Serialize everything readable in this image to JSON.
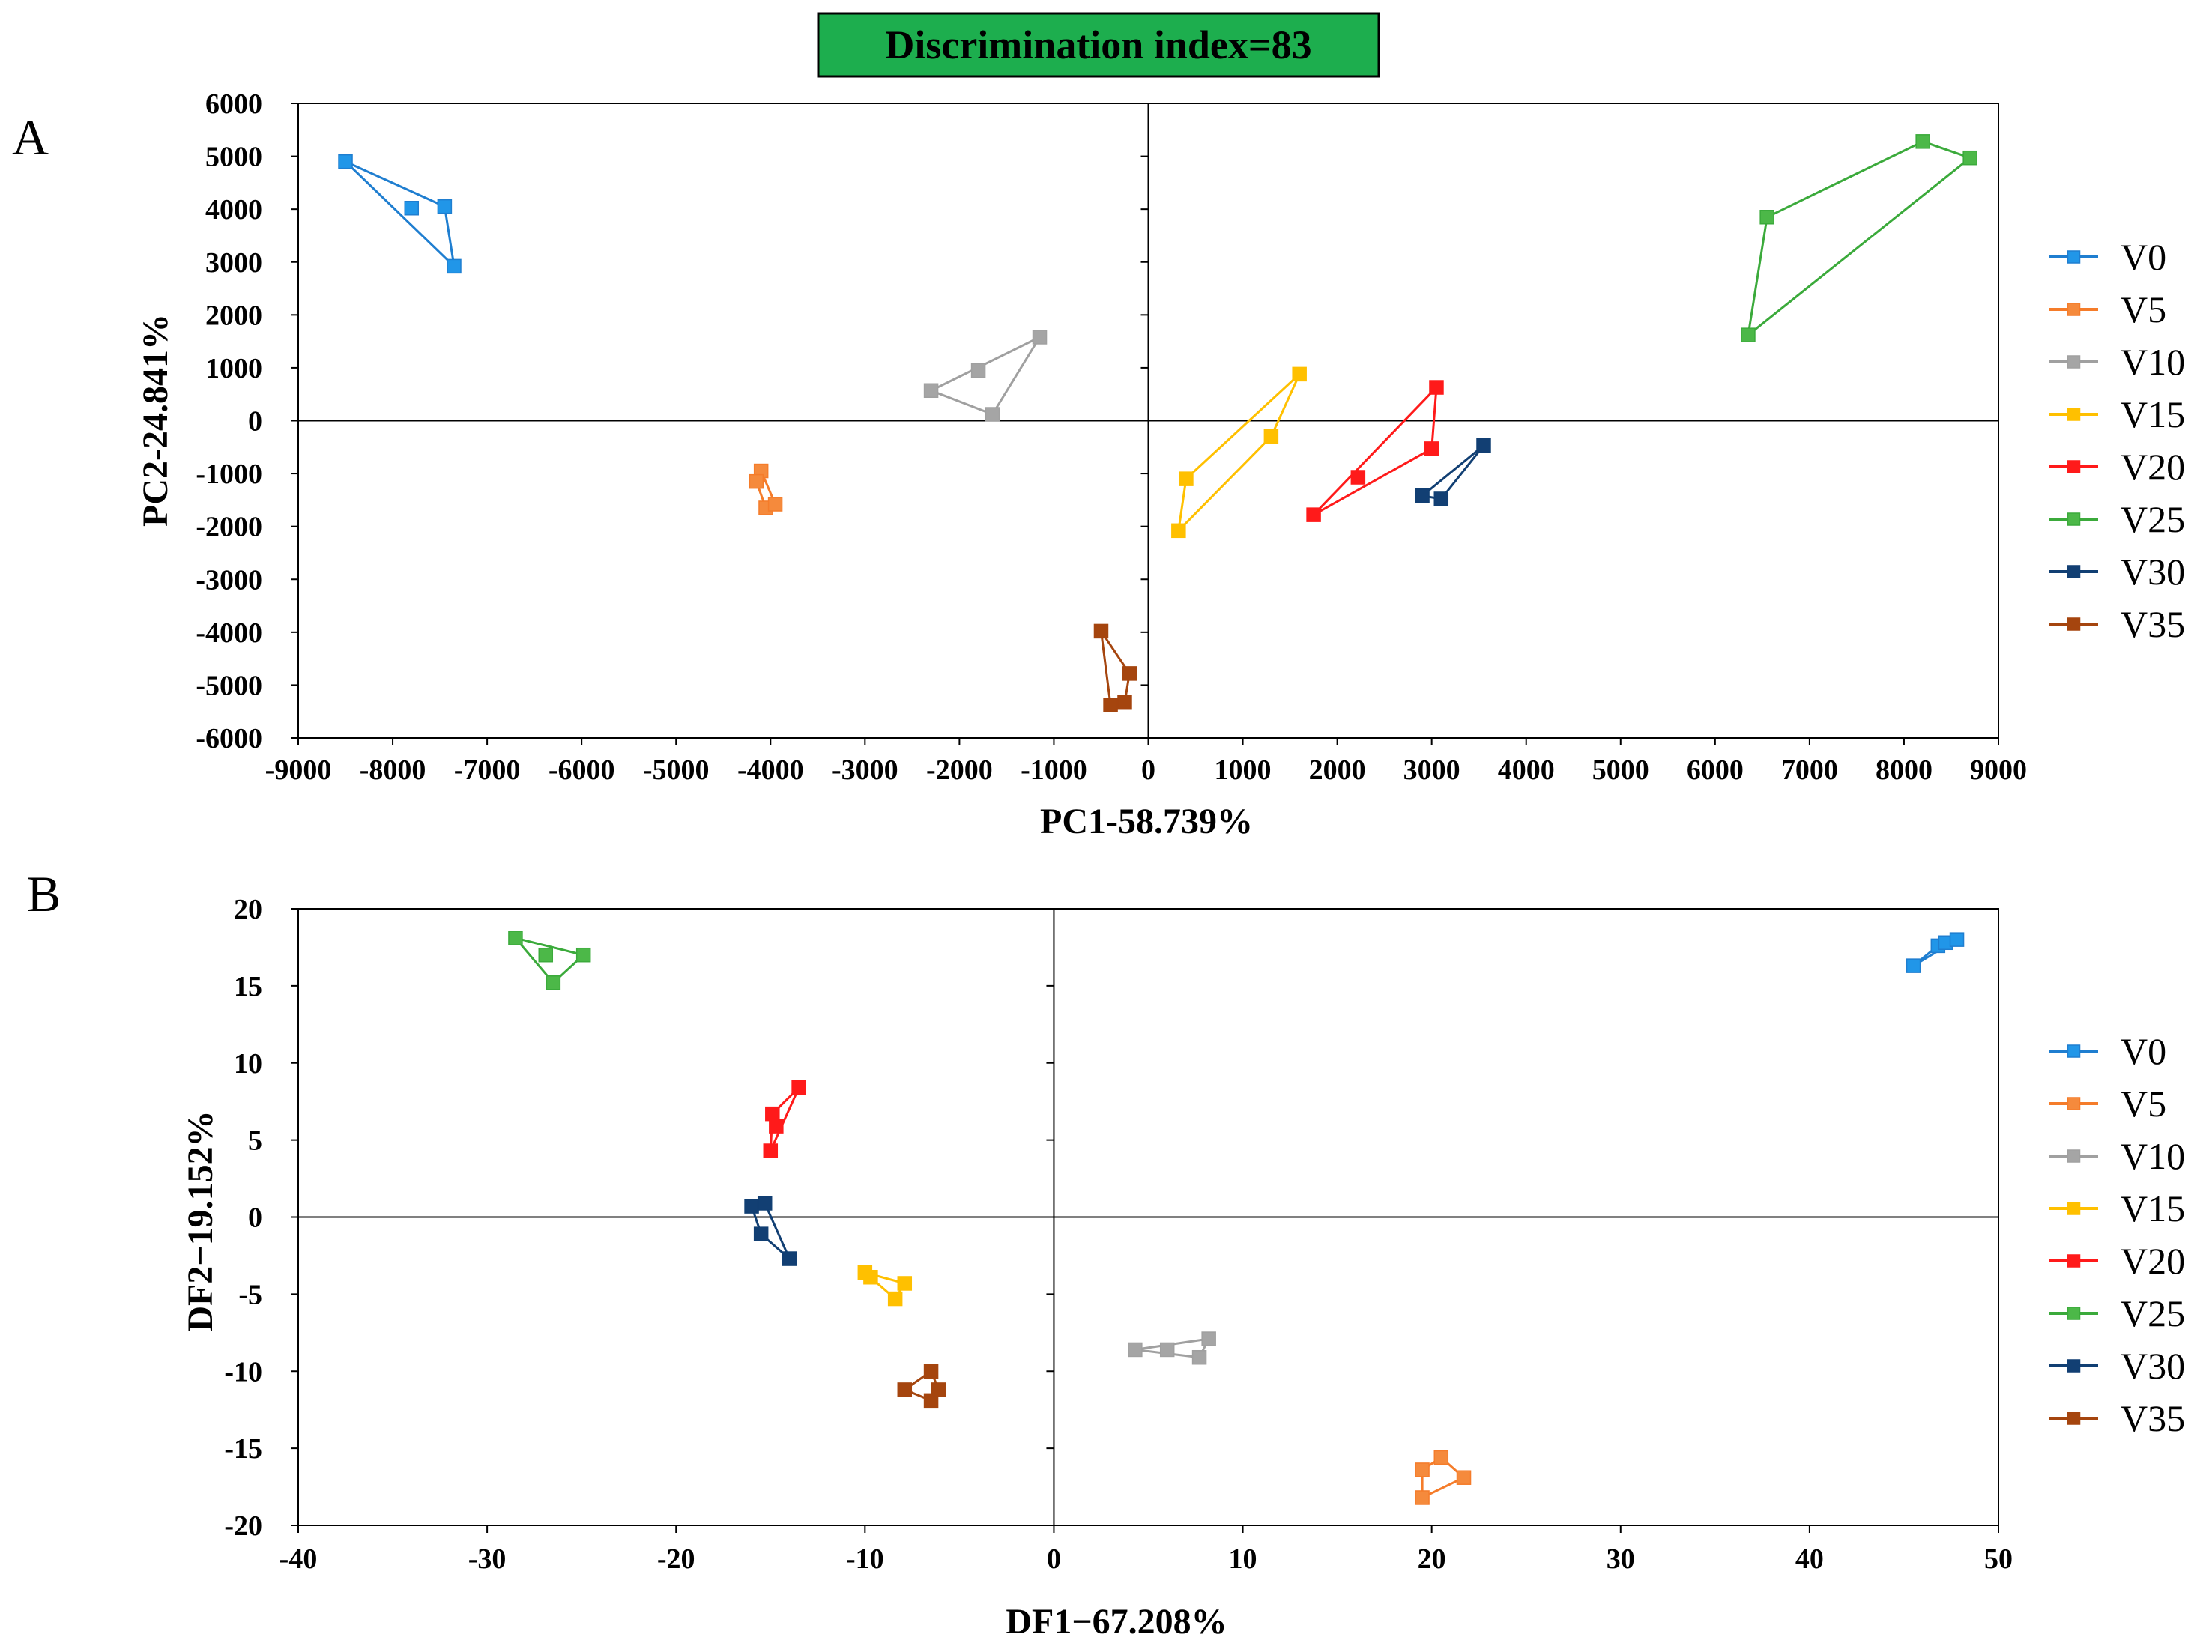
{
  "banner": {
    "text": "Discrimination index=83",
    "fill": "#1DAE4E"
  },
  "series_styles": [
    {
      "name": "V0",
      "color": "#1F7ED0",
      "fill": "#2196E8"
    },
    {
      "name": "V5",
      "color": "#F57C2A",
      "fill": "#F58A3C"
    },
    {
      "name": "V10",
      "color": "#A0A0A0",
      "fill": "#A5A5A5"
    },
    {
      "name": "V15",
      "color": "#FFC000",
      "fill": "#FFC000"
    },
    {
      "name": "V20",
      "color": "#FF1A1A",
      "fill": "#FF1A1A"
    },
    {
      "name": "V25",
      "color": "#3BAA3B",
      "fill": "#4CB848"
    },
    {
      "name": "V30",
      "color": "#113F73",
      "fill": "#123F73"
    },
    {
      "name": "V35",
      "color": "#A5450E",
      "fill": "#A5450E"
    }
  ],
  "chart_data": [
    {
      "type": "scatter",
      "panel_label": "A",
      "title": "",
      "xlabel": "PC1-58.739%",
      "ylabel": "PC2-24.841%",
      "xlim": [
        -9000,
        9000
      ],
      "ylim": [
        -6000,
        6000
      ],
      "xticks": [
        -9000,
        -8000,
        -7000,
        -6000,
        -5000,
        -4000,
        -3000,
        -2000,
        -1000,
        0,
        1000,
        2000,
        3000,
        4000,
        5000,
        6000,
        7000,
        8000,
        9000
      ],
      "yticks": [
        6000,
        5000,
        4000,
        3000,
        2000,
        1000,
        0,
        -1000,
        -2000,
        -3000,
        -4000,
        -5000,
        -6000
      ],
      "xtick_labels": [
        "-9000",
        "-8000",
        "-7000",
        "-6000",
        "-5000",
        "-4000",
        "-3000",
        "-2000",
        "-1000",
        "0",
        "1000",
        "2000",
        "3000",
        "4000",
        "5000",
        "6000",
        "7000",
        "8000",
        "9000"
      ],
      "ytick_labels": [
        "6000",
        "5000",
        "4000",
        "3000",
        "2000",
        "1000",
        "0",
        "-1000",
        "-2000",
        "-3000",
        "-4000",
        "-5000",
        "-6000"
      ],
      "legend": [
        "V0",
        "V5",
        "V10",
        "V15",
        "V20",
        "V25",
        "V30",
        "V35"
      ],
      "series": [
        {
          "name": "V0",
          "points": [
            [
              -8500,
              4900
            ],
            [
              -7800,
              4020
            ],
            [
              -7450,
              4050
            ],
            [
              -7350,
              2920
            ]
          ]
        },
        {
          "name": "V5",
          "points": [
            [
              -4100,
              -950
            ],
            [
              -4150,
              -1150
            ],
            [
              -4050,
              -1650
            ],
            [
              -3950,
              -1580
            ]
          ]
        },
        {
          "name": "V10",
          "points": [
            [
              -2300,
              570
            ],
            [
              -1800,
              950
            ],
            [
              -1650,
              120
            ],
            [
              -1150,
              1580
            ]
          ]
        },
        {
          "name": "V15",
          "points": [
            [
              320,
              -2080
            ],
            [
              400,
              -1100
            ],
            [
              1300,
              -300
            ],
            [
              1600,
              880
            ]
          ]
        },
        {
          "name": "V20",
          "points": [
            [
              1750,
              -1780
            ],
            [
              2220,
              -1070
            ],
            [
              3000,
              -530
            ],
            [
              3050,
              630
            ]
          ]
        },
        {
          "name": "V25",
          "points": [
            [
              6350,
              1620
            ],
            [
              6550,
              3850
            ],
            [
              8200,
              5280
            ],
            [
              8700,
              4970
            ]
          ]
        },
        {
          "name": "V30",
          "points": [
            [
              2900,
              -1420
            ],
            [
              3100,
              -1480
            ],
            [
              3550,
              -470
            ]
          ]
        },
        {
          "name": "V35",
          "points": [
            [
              -500,
              -3980
            ],
            [
              -400,
              -5380
            ],
            [
              -250,
              -5330
            ],
            [
              -200,
              -4780
            ]
          ]
        }
      ]
    },
    {
      "type": "scatter",
      "panel_label": "B",
      "title": "",
      "xlabel": "DF1−67.208%",
      "ylabel": "DF2−19.152%",
      "xlim": [
        -40,
        50
      ],
      "ylim": [
        -20,
        20
      ],
      "xticks": [
        -40,
        -30,
        -20,
        -10,
        0,
        10,
        20,
        30,
        40,
        50
      ],
      "yticks": [
        20,
        15,
        10,
        5,
        0,
        -5,
        -10,
        -15,
        -20
      ],
      "xtick_labels": [
        "-40",
        "-30",
        "-20",
        "-10",
        "0",
        "10",
        "20",
        "30",
        "40",
        "50"
      ],
      "ytick_labels": [
        "20",
        "15",
        "10",
        "5",
        "0",
        "-5",
        "-10",
        "-15",
        "-20"
      ],
      "legend": [
        "V0",
        "V5",
        "V10",
        "V15",
        "V20",
        "V25",
        "V30",
        "V35"
      ],
      "series": [
        {
          "name": "V0",
          "points": [
            [
              45.5,
              16.3
            ],
            [
              46.8,
              17.6
            ],
            [
              47.2,
              17.8
            ],
            [
              47.8,
              18.0
            ]
          ]
        },
        {
          "name": "V5",
          "points": [
            [
              19.5,
              -18.2
            ],
            [
              19.5,
              -16.4
            ],
            [
              20.5,
              -15.6
            ],
            [
              21.7,
              -16.9
            ]
          ]
        },
        {
          "name": "V10",
          "points": [
            [
              4.3,
              -8.6
            ],
            [
              6.0,
              -8.6
            ],
            [
              7.7,
              -9.1
            ],
            [
              8.2,
              -7.9
            ]
          ]
        },
        {
          "name": "V15",
          "points": [
            [
              -10.0,
              -3.6
            ],
            [
              -9.7,
              -3.9
            ],
            [
              -8.4,
              -5.3
            ],
            [
              -7.9,
              -4.3
            ]
          ]
        },
        {
          "name": "V20",
          "points": [
            [
              -15.0,
              4.3
            ],
            [
              -14.9,
              6.7
            ],
            [
              -14.7,
              5.9
            ],
            [
              -13.5,
              8.4
            ]
          ]
        },
        {
          "name": "V25",
          "points": [
            [
              -28.5,
              18.1
            ],
            [
              -26.9,
              17.0
            ],
            [
              -26.5,
              15.2
            ],
            [
              -24.9,
              17.0
            ]
          ]
        },
        {
          "name": "V30",
          "points": [
            [
              -16.0,
              0.7
            ],
            [
              -15.5,
              -1.1
            ],
            [
              -15.3,
              0.9
            ],
            [
              -14.0,
              -2.7
            ]
          ]
        },
        {
          "name": "V35",
          "points": [
            [
              -7.9,
              -11.2
            ],
            [
              -6.5,
              -10.0
            ],
            [
              -6.5,
              -11.9
            ],
            [
              -6.1,
              -11.2
            ]
          ]
        }
      ]
    }
  ]
}
